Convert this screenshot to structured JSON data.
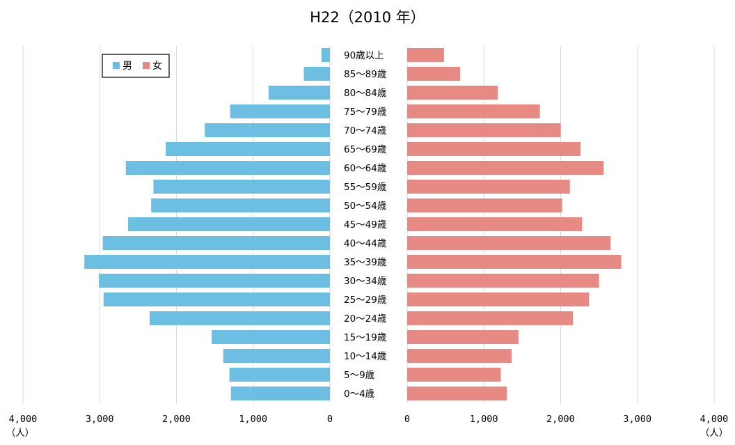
{
  "chart_data": {
    "type": "bar",
    "title": "H22（2010 年）",
    "unit_label": "（人）",
    "categories": [
      "90歳以上",
      "85～89歳",
      "80～84歳",
      "75～79歳",
      "70～74歳",
      "65～69歳",
      "60～64歳",
      "55～59歳",
      "50～54歳",
      "45～49歳",
      "40～44歳",
      "35～39歳",
      "30～34歳",
      "25～29歳",
      "20～24歳",
      "15～19歳",
      "10～14歳",
      "5～9歳",
      "0～4歳"
    ],
    "series": [
      {
        "name": "男",
        "color": "#6cbfe3",
        "values": [
          110,
          340,
          800,
          1300,
          1630,
          2140,
          2660,
          2300,
          2330,
          2630,
          2960,
          3200,
          3010,
          2950,
          2350,
          1540,
          1390,
          1310,
          1290
        ]
      },
      {
        "name": "女",
        "color": "#e78a84",
        "values": [
          480,
          690,
          1180,
          1730,
          2000,
          2260,
          2560,
          2120,
          2020,
          2280,
          2650,
          2790,
          2500,
          2370,
          2160,
          1450,
          1360,
          1220,
          1300
        ]
      }
    ],
    "left_ticks": [
      "4,000",
      "3,000",
      "2,000",
      "1,000",
      "0"
    ],
    "right_ticks": [
      "0",
      "1,000",
      "2,000",
      "3,000",
      "4,000"
    ],
    "xlim": [
      0,
      4000
    ],
    "grid": true,
    "legend_position": "top-left"
  }
}
